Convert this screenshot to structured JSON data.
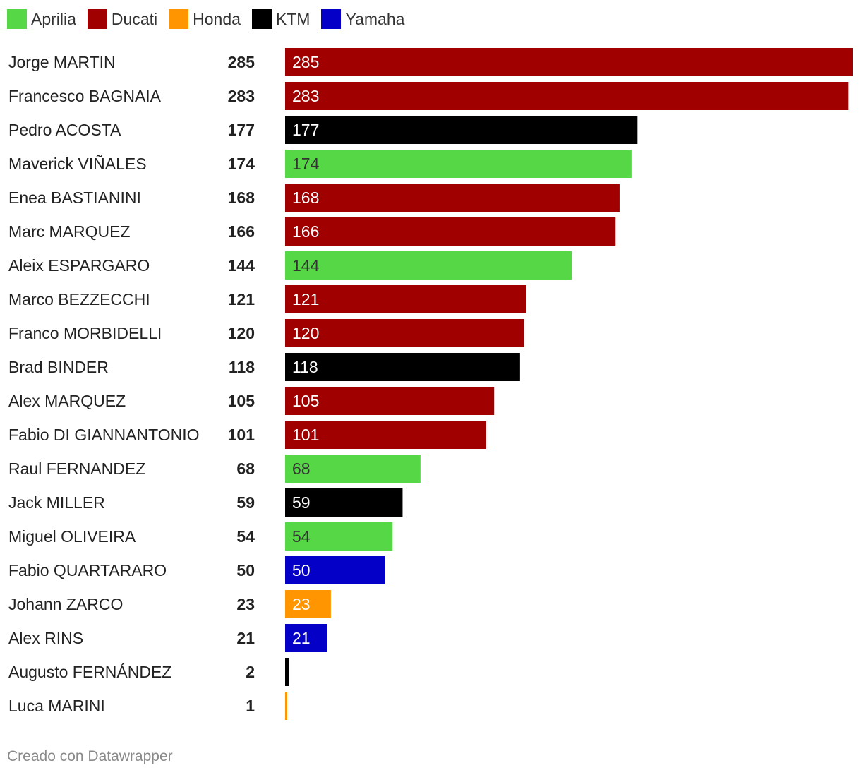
{
  "colors": {
    "Aprilia": "#56d846",
    "Ducati": "#a10000",
    "Honda": "#ff9500",
    "KTM": "#000000",
    "Yamaha": "#0500c8"
  },
  "legend": [
    "Aprilia",
    "Ducati",
    "Honda",
    "KTM",
    "Yamaha"
  ],
  "chart_data": {
    "type": "bar",
    "orientation": "horizontal",
    "title": "",
    "xlabel": "",
    "ylabel": "",
    "xlim": [
      0,
      285
    ],
    "grid": false,
    "legend_position": "top-left",
    "categories": [
      "Jorge MARTIN",
      "Francesco BAGNAIA",
      "Pedro ACOSTA",
      "Maverick VIÑALES",
      "Enea BASTIANINI",
      "Marc MARQUEZ",
      "Aleix ESPARGARO",
      "Marco BEZZECCHI",
      "Franco MORBIDELLI",
      "Brad BINDER",
      "Alex MARQUEZ",
      "Fabio DI GIANNANTONIO",
      "Raul FERNANDEZ",
      "Jack MILLER",
      "Miguel OLIVEIRA",
      "Fabio QUARTARARO",
      "Johann ZARCO",
      "Alex RINS",
      "Augusto FERNÁNDEZ",
      "Luca MARINI"
    ],
    "values": [
      285,
      283,
      177,
      174,
      168,
      166,
      144,
      121,
      120,
      118,
      105,
      101,
      68,
      59,
      54,
      50,
      23,
      21,
      2,
      1
    ],
    "manufacturers": [
      "Ducati",
      "Ducati",
      "KTM",
      "Aprilia",
      "Ducati",
      "Ducati",
      "Aprilia",
      "Ducati",
      "Ducati",
      "KTM",
      "Ducati",
      "Ducati",
      "Aprilia",
      "KTM",
      "Aprilia",
      "Yamaha",
      "Honda",
      "Yamaha",
      "KTM",
      "Honda"
    ],
    "value_labels": [
      "285",
      "283",
      "177",
      "174",
      "168",
      "166",
      "144",
      "121",
      "120",
      "118",
      "105",
      "101",
      "68",
      "59",
      "54",
      "50",
      "23",
      "21",
      "",
      ""
    ]
  },
  "footer": {
    "credit": "Creado con Datawrapper"
  }
}
